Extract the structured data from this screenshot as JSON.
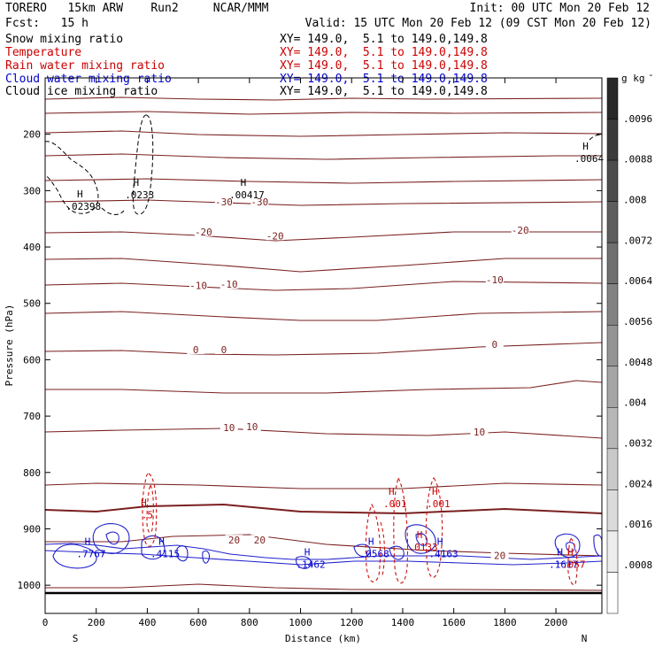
{
  "header": {
    "model": "TORERO   15km ARW    Run2     NCAR/MMM",
    "init": "Init: 00 UTC Mon 20 Feb 12",
    "fcst": "Fcst:   15 h",
    "valid": "Valid: 15 UTC Mon 20 Feb 12 (09 CST Mon 20 Feb 12)"
  },
  "legend": [
    {
      "label": "Snow mixing ratio",
      "range": "XY= 149.0,  5.1 to 149.0,149.8",
      "color": "#000000"
    },
    {
      "label": "Temperature",
      "range": "XY= 149.0,  5.1 to 149.0,149.8",
      "color": "#cc0000"
    },
    {
      "label": "Rain water mixing ratio",
      "range": "XY= 149.0,  5.1 to 149.0,149.8",
      "color": "#cc0000"
    },
    {
      "label": "Cloud water mixing ratio",
      "range": "XY= 149.0,  5.1 to 149.0,149.8",
      "color": "#0000cc"
    },
    {
      "label": "Cloud ice mixing ratio",
      "range": "XY= 149.0,  5.1 to 149.0,149.8",
      "color": "#000000"
    }
  ],
  "chart_data": {
    "type": "contour-cross-section",
    "xlabel": "Distance (km)",
    "ylabel": "Pressure (hPa)",
    "xlim": [
      0,
      2180
    ],
    "ylim": [
      1050,
      100
    ],
    "x_ticks": [
      0,
      200,
      400,
      600,
      800,
      1000,
      1200,
      1400,
      1600,
      1800,
      2000
    ],
    "y_ticks": [
      200,
      300,
      400,
      500,
      600,
      700,
      800,
      900,
      1000
    ],
    "x_end_labels": {
      "left": "S",
      "right": "N"
    },
    "colorbar": {
      "unit": "g kg",
      "unit_exp": "-1",
      "labels": [
        ".0096",
        ".0088",
        ".008",
        ".0072",
        ".0064",
        ".0056",
        ".0048",
        ".004",
        ".0032",
        ".0024",
        ".0016",
        ".0008"
      ]
    },
    "temperature_labels": [
      {
        "text": "-30",
        "x": 700,
        "p": 320
      },
      {
        "text": "-30",
        "x": 840,
        "p": 320
      },
      {
        "text": "-20",
        "x": 620,
        "p": 373
      },
      {
        "text": "-20",
        "x": 900,
        "p": 380
      },
      {
        "text": "-20",
        "x": 1860,
        "p": 370
      },
      {
        "text": "-10",
        "x": 600,
        "p": 468
      },
      {
        "text": "-10",
        "x": 720,
        "p": 466
      },
      {
        "text": "-10",
        "x": 1760,
        "p": 458
      },
      {
        "text": "0",
        "x": 590,
        "p": 582
      },
      {
        "text": "0",
        "x": 700,
        "p": 582
      },
      {
        "text": "0",
        "x": 1760,
        "p": 573
      },
      {
        "text": "10",
        "x": 720,
        "p": 720
      },
      {
        "text": "10",
        "x": 810,
        "p": 719
      },
      {
        "text": "10",
        "x": 1700,
        "p": 728
      },
      {
        "text": "20",
        "x": 740,
        "p": 920
      },
      {
        "text": "20",
        "x": 840,
        "p": 920
      },
      {
        "text": "20",
        "x": 1780,
        "p": 947
      }
    ],
    "maxima_labels": [
      {
        "text": ".02398",
        "x": 150,
        "p": 328,
        "color": "#000000"
      },
      {
        "text": ".0233",
        "x": 370,
        "p": 307,
        "color": "#000000"
      },
      {
        "text": ".00417",
        "x": 790,
        "p": 307,
        "color": "#000000"
      },
      {
        "text": ".0064",
        "x": 2130,
        "p": 243,
        "color": "#000000"
      },
      {
        "text": ".7767",
        "x": 180,
        "p": 944,
        "color": "#0000cc"
      },
      {
        "text": ".4115",
        "x": 470,
        "p": 944,
        "color": "#0000cc"
      },
      {
        "text": ".1462",
        "x": 1040,
        "p": 963,
        "color": "#0000cc"
      },
      {
        "text": ".0568",
        "x": 1290,
        "p": 944,
        "color": "#0000cc"
      },
      {
        "text": ".4163",
        "x": 1560,
        "p": 944,
        "color": "#0000cc"
      },
      {
        "text": ".1617",
        "x": 2030,
        "p": 963,
        "color": "#0000cc"
      },
      {
        "text": ".001",
        "x": 1370,
        "p": 855,
        "color": "#cc0000"
      },
      {
        "text": ".001",
        "x": 1540,
        "p": 855,
        "color": "#cc0000"
      },
      {
        "text": ".0133",
        "x": 1480,
        "p": 932,
        "color": "#cc0000"
      },
      {
        "text": ".057",
        "x": 2070,
        "p": 963,
        "color": "#cc0000"
      },
      {
        "text": ".5",
        "x": 400,
        "p": 875,
        "color": "#cc0000"
      }
    ]
  }
}
